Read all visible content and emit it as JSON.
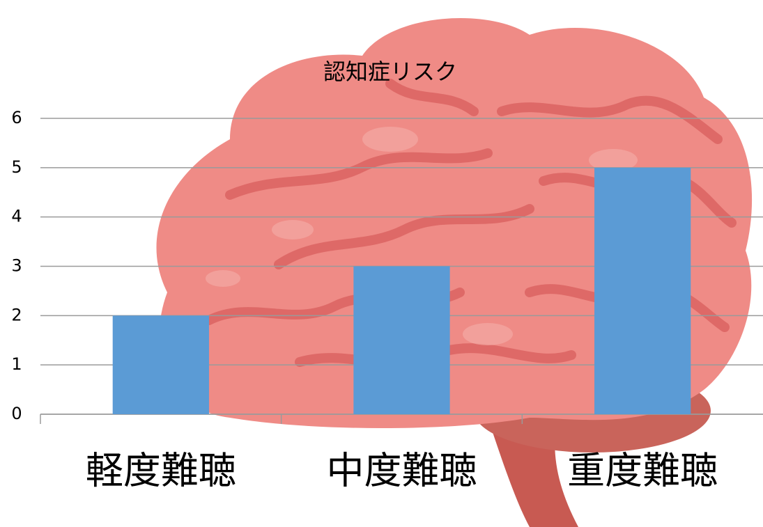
{
  "chart_data": {
    "type": "bar",
    "title": "認知症リスク",
    "categories": [
      "軽度難聴",
      "中度難聴",
      "重度難聴"
    ],
    "values": [
      2,
      3,
      5
    ],
    "color": "#5b9bd5",
    "ylim": [
      0,
      6
    ],
    "yticks": [
      0,
      1,
      2,
      3,
      4,
      5,
      6
    ],
    "grid": true
  }
}
